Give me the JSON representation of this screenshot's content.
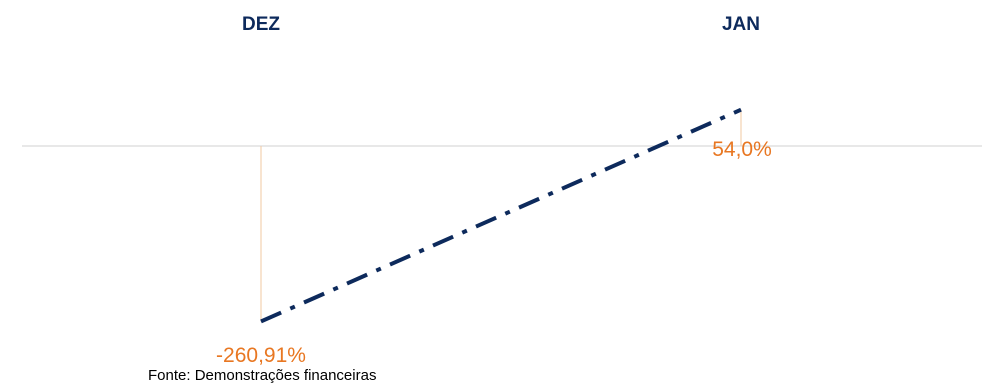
{
  "chart_data": {
    "type": "line",
    "categories": [
      "DEZ",
      "JAN"
    ],
    "series": [
      {
        "values": [
          -260.91,
          54.0
        ],
        "labels": [
          "-260,91%",
          "54,0%"
        ]
      }
    ],
    "unit": "%",
    "ylim": [
      -300,
      80
    ],
    "grid": false,
    "legend": "none",
    "line_style": "dash-dot",
    "colors": {
      "line": "#0d2a5c",
      "label": "#e87722",
      "drop_line": "#f2c9a2",
      "baseline": "#d9d9d9",
      "category": "#0d2a5c"
    }
  },
  "source": "Fonte: Demonstrações financeiras"
}
